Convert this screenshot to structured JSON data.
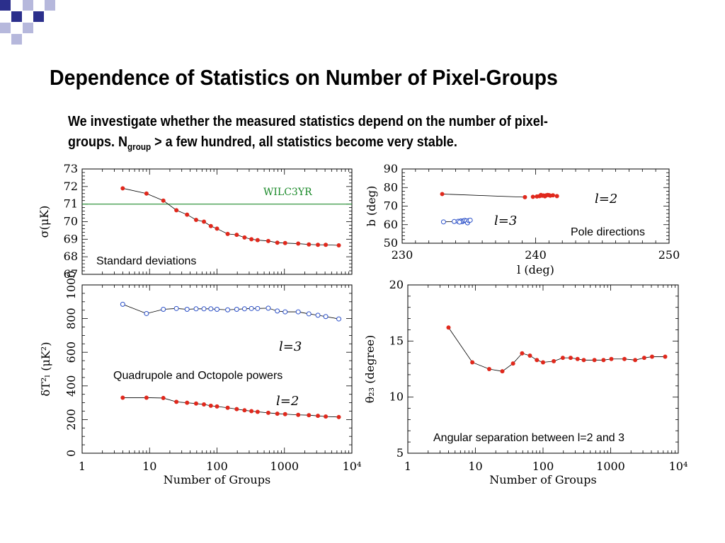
{
  "title": "Dependence of Statistics on Number of Pixel-Groups",
  "body": {
    "line1": "We investigate whether the measured statistics depend on the number of pixel-",
    "line2_pre": "groups. N",
    "line2_sub": "group",
    "line2_post": " > a few hundred, all statistics become very stable."
  },
  "colors": {
    "points": "#e0281c",
    "open_points": "#2a4fc8",
    "wilc_line": "#1b8a2a",
    "deco_dark": "#2b2f8c",
    "deco_light": "#b6b8dc"
  },
  "chart_data": [
    {
      "type": "line",
      "caption": "Standard deviations",
      "ylabel": "σ(μK)",
      "xlabel": "",
      "xscale": "log",
      "xlim": [
        1,
        10000
      ],
      "ylim": [
        67,
        73
      ],
      "yticks": [
        67,
        68,
        69,
        70,
        71,
        72,
        73
      ],
      "hline": {
        "y": 71,
        "label": "WILC3YR"
      },
      "series": [
        {
          "x": [
            4,
            9,
            16,
            25,
            36,
            49,
            64,
            81,
            100,
            144,
            196,
            256,
            324,
            400,
            576,
            784,
            1024,
            1600,
            2304,
            3136,
            4096,
            6400
          ],
          "values": [
            71.9,
            71.6,
            71.2,
            70.65,
            70.4,
            70.1,
            70.0,
            69.75,
            69.6,
            69.3,
            69.25,
            69.1,
            69.0,
            68.95,
            68.9,
            68.8,
            68.78,
            68.75,
            68.7,
            68.68,
            68.68,
            68.65
          ]
        }
      ]
    },
    {
      "type": "scatter",
      "caption": "Pole directions",
      "xlabel": "l (deg)",
      "ylabel": "b (deg)",
      "xlim": [
        230,
        250
      ],
      "ylim": [
        50,
        90
      ],
      "xticks": [
        230,
        240,
        250
      ],
      "yticks": [
        50,
        60,
        70,
        80,
        90
      ],
      "series": [
        {
          "name": "l=2",
          "x": [
            233,
            239.2,
            239.8,
            240.1,
            240.3,
            240.5,
            240.6,
            240.8,
            240.9,
            241.0,
            241.1,
            241.3,
            241.6,
            240.4,
            240.7
          ],
          "values": [
            76.5,
            74.8,
            75.0,
            75.2,
            75.4,
            75.6,
            75.7,
            75.8,
            76.0,
            75.9,
            75.6,
            75.8,
            75.4,
            76.0,
            75.3
          ]
        },
        {
          "name": "l=3",
          "x": [
            233.1,
            233.9,
            234.2,
            234.4,
            234.5,
            234.6,
            234.7,
            234.8,
            234.9,
            235.0,
            235.1,
            234.3
          ],
          "values": [
            61.5,
            61.7,
            61.8,
            62.0,
            61.6,
            62.1,
            62.3,
            62.0,
            61.0,
            62.2,
            62.4,
            61.4
          ]
        }
      ]
    },
    {
      "type": "line",
      "caption": "Quadrupole and Octopole powers",
      "ylabel": "δT²ₗ (μK²)",
      "xlabel": "Number of Groups",
      "xscale": "log",
      "xlim": [
        1,
        10000
      ],
      "ylim": [
        0,
        1000
      ],
      "xticks": [
        "1",
        "10",
        "100",
        "1000",
        "10⁴"
      ],
      "yticks": [
        0,
        200,
        400,
        600,
        800,
        1000
      ],
      "series": [
        {
          "name": "l=3",
          "x": [
            4,
            9,
            16,
            25,
            36,
            49,
            64,
            81,
            100,
            144,
            196,
            256,
            324,
            400,
            576,
            784,
            1024,
            1600,
            2304,
            3136,
            4096,
            6400
          ],
          "values": [
            885,
            830,
            855,
            860,
            855,
            858,
            858,
            858,
            855,
            852,
            855,
            858,
            860,
            860,
            862,
            845,
            840,
            840,
            828,
            820,
            812,
            798
          ]
        },
        {
          "name": "l=2",
          "x": [
            4,
            9,
            16,
            25,
            36,
            49,
            64,
            81,
            100,
            144,
            196,
            256,
            324,
            400,
            576,
            784,
            1024,
            1600,
            2304,
            3136,
            4096,
            6400
          ],
          "values": [
            330,
            330,
            328,
            305,
            300,
            295,
            290,
            282,
            278,
            270,
            262,
            255,
            250,
            246,
            240,
            235,
            232,
            228,
            226,
            222,
            218,
            215
          ]
        }
      ]
    },
    {
      "type": "line",
      "caption": "Angular separation between l=2 and 3",
      "ylabel": "θ₂₃ (degree)",
      "xlabel": "Number of Groups",
      "xscale": "log",
      "xlim": [
        1,
        10000
      ],
      "ylim": [
        5,
        20
      ],
      "xticks": [
        "1",
        "10",
        "100",
        "1000",
        "10⁴"
      ],
      "yticks": [
        5,
        10,
        15,
        20
      ],
      "series": [
        {
          "x": [
            4,
            9,
            16,
            25,
            36,
            49,
            64,
            81,
            100,
            144,
            196,
            256,
            324,
            400,
            576,
            784,
            1024,
            1600,
            2304,
            3136,
            4096,
            6400
          ],
          "values": [
            16.2,
            13.1,
            12.5,
            12.3,
            13.0,
            13.9,
            13.7,
            13.3,
            13.1,
            13.2,
            13.5,
            13.5,
            13.4,
            13.3,
            13.3,
            13.3,
            13.4,
            13.4,
            13.3,
            13.5,
            13.6,
            13.6
          ]
        }
      ]
    }
  ]
}
